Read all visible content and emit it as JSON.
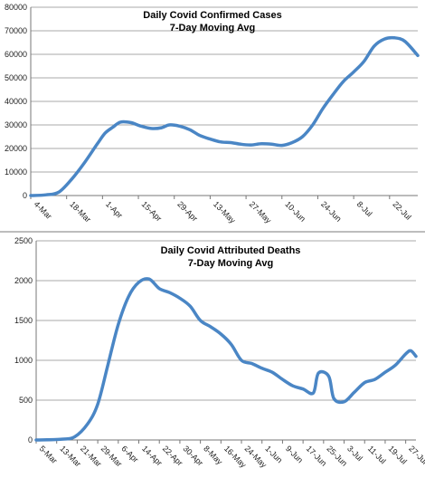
{
  "chart_data": [
    {
      "type": "line",
      "title": "Daily Covid Confirmed Cases",
      "subtitle": "7-Day Moving Avg",
      "xlabel": "",
      "ylabel": "",
      "ylim": [
        0,
        80000
      ],
      "yticks": [
        0,
        10000,
        20000,
        30000,
        40000,
        50000,
        60000,
        70000,
        80000
      ],
      "ytick_labels": [
        "0",
        "10000",
        "20000",
        "30000",
        "40000",
        "50000",
        "60000",
        "70000",
        "80000"
      ],
      "x_tick_labels": [
        "4-Mar",
        "18-Mar",
        "1-Apr",
        "15-Apr",
        "29-Apr",
        "13-May",
        "27-May",
        "10-Jun",
        "24-Jun",
        "8-Jul",
        "22-Jul"
      ],
      "x_start": "2020-03-04",
      "x_end": "2020-08-02",
      "grid": true,
      "color": "#4a86c5",
      "series": [
        {
          "values": [
            [
              "2020-03-04",
              0
            ],
            [
              "2020-03-10",
              300
            ],
            [
              "2020-03-15",
              1500
            ],
            [
              "2020-03-20",
              7000
            ],
            [
              "2020-03-25",
              14000
            ],
            [
              "2020-03-30",
              22000
            ],
            [
              "2020-04-02",
              26500
            ],
            [
              "2020-04-05",
              29000
            ],
            [
              "2020-04-08",
              31200
            ],
            [
              "2020-04-12",
              31000
            ],
            [
              "2020-04-16",
              29500
            ],
            [
              "2020-04-20",
              28500
            ],
            [
              "2020-04-24",
              28800
            ],
            [
              "2020-04-27",
              30000
            ],
            [
              "2020-05-01",
              29500
            ],
            [
              "2020-05-05",
              28000
            ],
            [
              "2020-05-09",
              25500
            ],
            [
              "2020-05-13",
              24000
            ],
            [
              "2020-05-17",
              22800
            ],
            [
              "2020-05-21",
              22500
            ],
            [
              "2020-05-25",
              21800
            ],
            [
              "2020-05-29",
              21500
            ],
            [
              "2020-06-02",
              22000
            ],
            [
              "2020-06-06",
              21800
            ],
            [
              "2020-06-10",
              21300
            ],
            [
              "2020-06-14",
              22500
            ],
            [
              "2020-06-18",
              25000
            ],
            [
              "2020-06-22",
              30000
            ],
            [
              "2020-06-26",
              37000
            ],
            [
              "2020-06-30",
              43000
            ],
            [
              "2020-07-04",
              48500
            ],
            [
              "2020-07-08",
              52500
            ],
            [
              "2020-07-12",
              57000
            ],
            [
              "2020-07-16",
              63500
            ],
            [
              "2020-07-20",
              66500
            ],
            [
              "2020-07-24",
              67000
            ],
            [
              "2020-07-28",
              65500
            ],
            [
              "2020-08-02",
              59500
            ]
          ]
        }
      ]
    },
    {
      "type": "line",
      "title": "Daily Covid Attributed Deaths",
      "subtitle": "7-Day Moving Avg",
      "xlabel": "",
      "ylabel": "",
      "ylim": [
        0,
        2500
      ],
      "yticks": [
        0,
        500,
        1000,
        1500,
        2000,
        2500
      ],
      "ytick_labels": [
        "0",
        "500",
        "1000",
        "1500",
        "2000",
        "2500"
      ],
      "x_tick_labels": [
        "5-Mar",
        "13-Mar",
        "21-Mar",
        "29-Mar",
        "6-Apr",
        "14-Apr",
        "22-Apr",
        "30-Apr",
        "8-May",
        "16-May",
        "24-May",
        "1-Jun",
        "9-Jun",
        "17-Jun",
        "25-Jun",
        "3-Jul",
        "11-Jul",
        "19-Jul",
        "27-Jul"
      ],
      "x_start": "2020-03-05",
      "x_end": "2020-07-31",
      "grid": true,
      "color": "#4a86c5",
      "series": [
        {
          "values": [
            [
              "2020-03-05",
              0
            ],
            [
              "2020-03-15",
              10
            ],
            [
              "2020-03-20",
              40
            ],
            [
              "2020-03-25",
              200
            ],
            [
              "2020-03-29",
              450
            ],
            [
              "2020-04-02",
              950
            ],
            [
              "2020-04-06",
              1450
            ],
            [
              "2020-04-10",
              1800
            ],
            [
              "2020-04-14",
              1980
            ],
            [
              "2020-04-18",
              2020
            ],
            [
              "2020-04-22",
              1900
            ],
            [
              "2020-04-26",
              1850
            ],
            [
              "2020-04-30",
              1780
            ],
            [
              "2020-05-04",
              1680
            ],
            [
              "2020-05-08",
              1500
            ],
            [
              "2020-05-12",
              1420
            ],
            [
              "2020-05-16",
              1330
            ],
            [
              "2020-05-20",
              1200
            ],
            [
              "2020-05-24",
              1000
            ],
            [
              "2020-05-28",
              960
            ],
            [
              "2020-06-01",
              900
            ],
            [
              "2020-06-05",
              850
            ],
            [
              "2020-06-09",
              760
            ],
            [
              "2020-06-13",
              680
            ],
            [
              "2020-06-17",
              640
            ],
            [
              "2020-06-21",
              590
            ],
            [
              "2020-06-23",
              840
            ],
            [
              "2020-06-27",
              800
            ],
            [
              "2020-06-29",
              520
            ],
            [
              "2020-07-03",
              480
            ],
            [
              "2020-07-07",
              600
            ],
            [
              "2020-07-11",
              720
            ],
            [
              "2020-07-15",
              760
            ],
            [
              "2020-07-19",
              850
            ],
            [
              "2020-07-23",
              940
            ],
            [
              "2020-07-27",
              1080
            ],
            [
              "2020-07-29",
              1120
            ],
            [
              "2020-07-31",
              1050
            ]
          ]
        }
      ]
    }
  ]
}
